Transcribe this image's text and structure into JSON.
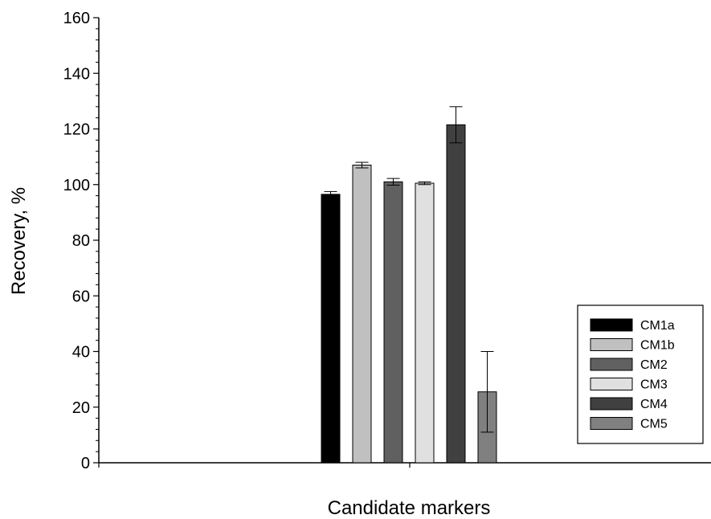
{
  "chart_data": {
    "type": "bar",
    "xlabel": "Candidate markers",
    "ylabel": "Recovery, %",
    "ylim": [
      0,
      160
    ],
    "yticks": [
      0,
      20,
      40,
      60,
      80,
      100,
      120,
      140,
      160
    ],
    "grid": false,
    "legend_position": "right",
    "series": [
      {
        "name": "CM1a",
        "value": 96.5,
        "error": 1.0,
        "color": "#000000"
      },
      {
        "name": "CM1b",
        "value": 107.0,
        "error": 1.0,
        "color": "#c0c0c0"
      },
      {
        "name": "CM2",
        "value": 101.0,
        "error": 1.2,
        "color": "#606060"
      },
      {
        "name": "CM3",
        "value": 100.5,
        "error": 0.5,
        "color": "#e0e0e0"
      },
      {
        "name": "CM4",
        "value": 121.5,
        "error": 6.5,
        "color": "#404040"
      },
      {
        "name": "CM5",
        "value": 25.5,
        "error": 14.5,
        "color": "#808080"
      }
    ]
  }
}
